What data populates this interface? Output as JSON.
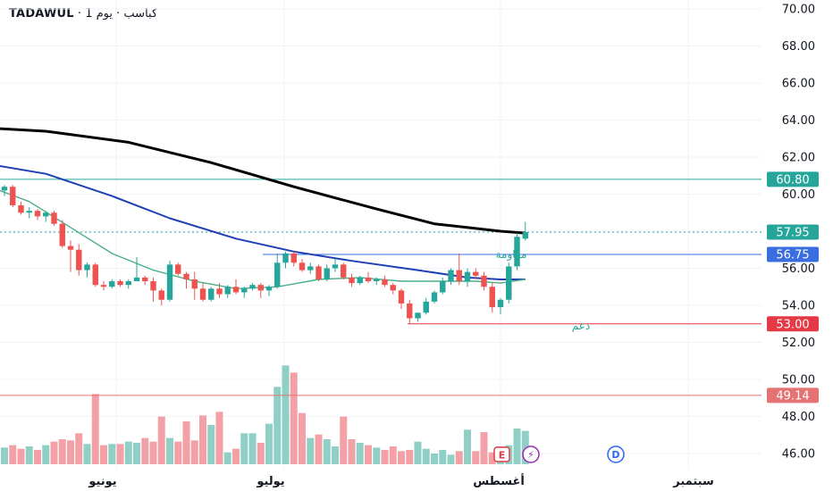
{
  "header": {
    "brand": "TADAWUL",
    "sep1": "·",
    "period": "يوم 1",
    "sep2": "·",
    "symbol": "كباسب"
  },
  "colors": {
    "up": "#26a69a",
    "down": "#ef5350",
    "up_volume": "#8fcfc5",
    "down_volume": "#f3a1a6",
    "ma_long": "#000000",
    "ma_mid": "#1f3fb5",
    "ma_short": "#4caf88",
    "level_top": "#26a69a",
    "level_resistance": "#3a6ee0",
    "level_support": "#e53945",
    "level_volume": "#e57373",
    "last_price": "#26a69a"
  },
  "chart_data": {
    "type": "candlestick",
    "y_axis": {
      "ylim": [
        45.2,
        70.6
      ],
      "ticks": [
        "46.00",
        "48.00",
        "50.00",
        "52.00",
        "54.00",
        "56.00",
        "58.00",
        "60.00",
        "62.00",
        "64.00",
        "66.00",
        "68.00",
        "70.00"
      ]
    },
    "x_axis": {
      "months": [
        "يونيو",
        "يوليو",
        "أغسطس",
        "سبتمبر"
      ]
    },
    "candles": [
      [
        60.2,
        60.5,
        59.9,
        60.4
      ],
      [
        60.4,
        60.5,
        59.3,
        59.4
      ],
      [
        59.4,
        59.6,
        58.9,
        59.0
      ],
      [
        59.0,
        59.3,
        58.7,
        59.1
      ],
      [
        59.1,
        59.2,
        58.6,
        58.8
      ],
      [
        58.8,
        59.1,
        58.5,
        59.0
      ],
      [
        59.0,
        59.1,
        58.3,
        58.4
      ],
      [
        58.4,
        58.6,
        57.1,
        57.2
      ],
      [
        57.2,
        57.5,
        55.8,
        57.0
      ],
      [
        57.0,
        57.3,
        55.6,
        55.9
      ],
      [
        55.9,
        56.3,
        55.5,
        56.2
      ],
      [
        56.2,
        56.3,
        55.0,
        55.1
      ],
      [
        55.1,
        55.3,
        54.8,
        55.0
      ],
      [
        55.0,
        55.4,
        54.9,
        55.3
      ],
      [
        55.3,
        55.4,
        55.0,
        55.1
      ],
      [
        55.1,
        55.4,
        54.9,
        55.3
      ],
      [
        55.3,
        56.6,
        55.3,
        55.5
      ],
      [
        55.5,
        55.6,
        55.1,
        55.3
      ],
      [
        55.3,
        55.5,
        54.2,
        54.8
      ],
      [
        54.8,
        54.9,
        54.0,
        54.3
      ],
      [
        54.3,
        56.4,
        54.2,
        56.2
      ],
      [
        56.2,
        56.3,
        55.6,
        55.7
      ],
      [
        55.7,
        55.8,
        54.9,
        55.4
      ],
      [
        55.4,
        55.8,
        54.3,
        54.9
      ],
      [
        54.9,
        55.2,
        54.2,
        54.3
      ],
      [
        54.3,
        55.0,
        54.2,
        54.9
      ],
      [
        54.9,
        55.2,
        54.4,
        54.6
      ],
      [
        54.6,
        55.1,
        54.4,
        55.0
      ],
      [
        55.0,
        55.4,
        54.6,
        54.7
      ],
      [
        54.7,
        55.0,
        54.4,
        54.9
      ],
      [
        54.9,
        55.2,
        54.8,
        55.1
      ],
      [
        55.1,
        55.2,
        54.4,
        54.8
      ],
      [
        54.8,
        55.1,
        54.5,
        55.0
      ],
      [
        55.0,
        56.8,
        54.9,
        56.3
      ],
      [
        56.3,
        56.9,
        56.0,
        56.8
      ],
      [
        56.8,
        56.9,
        56.1,
        56.3
      ],
      [
        56.3,
        56.5,
        55.8,
        55.9
      ],
      [
        55.9,
        56.3,
        55.7,
        56.1
      ],
      [
        56.1,
        56.2,
        55.3,
        55.4
      ],
      [
        55.4,
        56.2,
        55.3,
        56.0
      ],
      [
        56.0,
        56.5,
        55.8,
        56.2
      ],
      [
        56.2,
        56.3,
        55.4,
        55.5
      ],
      [
        55.5,
        55.7,
        55.0,
        55.2
      ],
      [
        55.2,
        55.6,
        55.1,
        55.5
      ],
      [
        55.5,
        55.8,
        55.2,
        55.3
      ],
      [
        55.3,
        55.5,
        55.1,
        55.4
      ],
      [
        55.4,
        55.6,
        55.0,
        55.1
      ],
      [
        55.1,
        55.2,
        54.6,
        54.8
      ],
      [
        54.8,
        54.9,
        53.8,
        54.1
      ],
      [
        54.1,
        54.3,
        53.0,
        53.3
      ],
      [
        53.3,
        53.6,
        53.1,
        53.6
      ],
      [
        53.6,
        54.4,
        53.5,
        54.2
      ],
      [
        54.2,
        54.8,
        54.1,
        54.7
      ],
      [
        54.7,
        55.5,
        54.6,
        55.3
      ],
      [
        55.3,
        56.0,
        55.1,
        55.9
      ],
      [
        55.9,
        56.8,
        55.1,
        55.3
      ],
      [
        55.3,
        56.0,
        55.0,
        55.8
      ],
      [
        55.8,
        56.0,
        55.4,
        55.6
      ],
      [
        55.6,
        55.8,
        54.8,
        55.0
      ],
      [
        55.0,
        55.2,
        53.6,
        53.9
      ],
      [
        53.9,
        54.4,
        53.5,
        54.3
      ],
      [
        54.3,
        56.3,
        54.1,
        56.1
      ],
      [
        56.1,
        57.9,
        55.9,
        57.7
      ],
      [
        57.6,
        58.5,
        57.5,
        57.95
      ]
    ],
    "volume": {
      "values": [
        1.4,
        1.6,
        1.3,
        1.5,
        1.2,
        1.6,
        1.9,
        2.1,
        2.0,
        2.6,
        1.7,
        5.9,
        1.6,
        1.7,
        1.7,
        1.9,
        1.8,
        2.2,
        1.9,
        4.0,
        2.2,
        1.9,
        3.6,
        2.0,
        4.1,
        3.3,
        4.4,
        1.0,
        1.3,
        2.6,
        2.6,
        1.8,
        3.4,
        6.5,
        8.3,
        7.7,
        4.3,
        2.2,
        2.5,
        2.1,
        1.5,
        4.0,
        2.1,
        1.8,
        1.6,
        1.4,
        1.2,
        1.5,
        1.1,
        1.2,
        1.9,
        1.3,
        0.9,
        1.2,
        0.8,
        1.1,
        2.9,
        1.1,
        2.7,
        1.0,
        1.5,
        1.6,
        3.0,
        2.8
      ],
      "scale_max": 9.6
    },
    "moving_averages": [
      {
        "key": "ma_long",
        "width": 3.0,
        "points": [
          [
            -3,
            63.6
          ],
          [
            5,
            63.4
          ],
          [
            15,
            62.8
          ],
          [
            25,
            61.7
          ],
          [
            35,
            60.4
          ],
          [
            45,
            59.2
          ],
          [
            52,
            58.4
          ],
          [
            60,
            58.0
          ],
          [
            63,
            57.9
          ]
        ]
      },
      {
        "key": "ma_mid",
        "width": 2.0,
        "points": [
          [
            -3,
            61.7
          ],
          [
            5,
            61.1
          ],
          [
            13,
            59.9
          ],
          [
            20,
            58.7
          ],
          [
            28,
            57.6
          ],
          [
            35,
            56.9
          ],
          [
            42,
            56.4
          ],
          [
            50,
            55.9
          ],
          [
            56,
            55.5
          ],
          [
            60,
            55.4
          ],
          [
            63,
            55.4
          ]
        ]
      },
      {
        "key": "ma_short",
        "width": 1.4,
        "points": [
          [
            -3,
            60.6
          ],
          [
            3,
            59.6
          ],
          [
            8,
            58.2
          ],
          [
            13,
            56.8
          ],
          [
            18,
            55.9
          ],
          [
            23,
            55.3
          ],
          [
            28,
            54.9
          ],
          [
            33,
            55.0
          ],
          [
            38,
            55.4
          ],
          [
            43,
            55.5
          ],
          [
            48,
            55.3
          ],
          [
            52,
            55.3
          ],
          [
            57,
            55.3
          ],
          [
            60,
            55.2
          ],
          [
            63,
            55.4
          ]
        ]
      }
    ],
    "levels": [
      {
        "key": "level_top",
        "value": 60.8,
        "label": "60.80",
        "from_frac": 0.0,
        "dashed": false
      },
      {
        "key": "level_resistance",
        "value": 56.75,
        "label": "56.75",
        "from_frac": 0.345,
        "dashed": false
      },
      {
        "key": "level_support",
        "value": 53.0,
        "label": "53.00",
        "from_frac": 0.535,
        "dashed": false
      },
      {
        "key": "level_volume",
        "value": 49.14,
        "label": "49.14",
        "from_frac": 0.0,
        "dashed": false
      },
      {
        "key": "last_price",
        "value": 57.95,
        "label": "57.95",
        "from_frac": 0.0,
        "dashed": true
      }
    ],
    "annotations": {
      "resistance": "مقاومة",
      "support": "دعم"
    },
    "event_markers": {
      "earnings": "E",
      "dividend": "⚡",
      "split": "D"
    }
  }
}
